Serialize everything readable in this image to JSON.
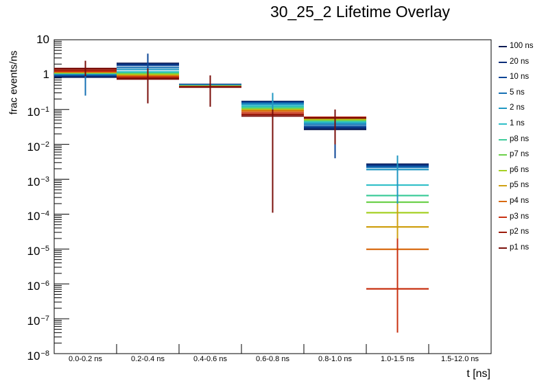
{
  "chart_data": {
    "type": "bar-errorbar",
    "title": "30_25_2 Lifetime Overlay",
    "xlabel": "t [ns]",
    "ylabel": "frac events/ns",
    "yscale": "log",
    "ylim": [
      1e-08,
      10
    ],
    "ytick_labels": [
      {
        "base": "10",
        "exp": ""
      },
      {
        "base": "1",
        "exp": ""
      },
      {
        "base": "10",
        "exp": "−1"
      },
      {
        "base": "10",
        "exp": "−2"
      },
      {
        "base": "10",
        "exp": "−3"
      },
      {
        "base": "10",
        "exp": "−4"
      },
      {
        "base": "10",
        "exp": "−5"
      },
      {
        "base": "10",
        "exp": "−6"
      },
      {
        "base": "10",
        "exp": "−7"
      },
      {
        "base": "10",
        "exp": "−8"
      }
    ],
    "categories": [
      "0.0-0.2 ns",
      "0.2-0.4 ns",
      "0.4-0.6 ns",
      "0.6-0.8 ns",
      "0.8-1.0 ns",
      "1.0-1.5 ns",
      "1.5-12.0 ns"
    ],
    "legend_position": "right",
    "series": [
      {
        "name": "100 ns",
        "color": "#0d1b52",
        "values": [
          0.85,
          2.1,
          0.52,
          0.17,
          0.027,
          0.0027,
          null
        ]
      },
      {
        "name": "20 ns",
        "color": "#0a2c78",
        "values": [
          0.9,
          2.0,
          0.52,
          0.165,
          0.029,
          0.0026,
          null
        ]
      },
      {
        "name": "10 ns",
        "color": "#0b4596",
        "values": [
          0.95,
          1.85,
          0.51,
          0.16,
          0.032,
          0.0024,
          null
        ]
      },
      {
        "name": "5 ns",
        "color": "#1570b4",
        "values": [
          1.0,
          1.6,
          0.5,
          0.15,
          0.036,
          0.0022,
          null
        ]
      },
      {
        "name": "2 ns",
        "color": "#1f97c2",
        "values": [
          1.05,
          1.4,
          0.49,
          0.14,
          0.04,
          0.0019,
          null
        ]
      },
      {
        "name": "1 ns",
        "color": "#2ebfc8",
        "values": [
          1.1,
          1.2,
          0.48,
          0.125,
          0.044,
          0.00068,
          null
        ]
      },
      {
        "name": "p8 ns",
        "color": "#3ecc9a",
        "values": [
          1.1,
          1.1,
          0.48,
          0.115,
          0.047,
          0.00034,
          null
        ]
      },
      {
        "name": "p7 ns",
        "color": "#6cd04a",
        "values": [
          1.12,
          1.05,
          0.47,
          0.105,
          0.05,
          0.00022,
          null
        ]
      },
      {
        "name": "p6 ns",
        "color": "#a6d023",
        "values": [
          1.15,
          1.0,
          0.46,
          0.1,
          0.052,
          0.00011,
          null
        ]
      },
      {
        "name": "p5 ns",
        "color": "#cfa012",
        "values": [
          1.18,
          0.95,
          0.455,
          0.095,
          0.055,
          4.3e-05,
          null
        ]
      },
      {
        "name": "p4 ns",
        "color": "#d86a10",
        "values": [
          1.2,
          0.9,
          0.45,
          0.09,
          0.058,
          9.8e-06,
          null
        ]
      },
      {
        "name": "p3 ns",
        "color": "#c83010",
        "values": [
          1.25,
          0.85,
          0.45,
          0.08,
          0.06,
          7.2e-07,
          null
        ]
      },
      {
        "name": "p2 ns",
        "color": "#9c1a0a",
        "values": [
          1.35,
          0.8,
          0.44,
          0.072,
          0.058,
          null,
          null
        ]
      },
      {
        "name": "p1 ns",
        "color": "#7a0e0a",
        "values": [
          1.5,
          0.75,
          0.44,
          0.065,
          0.057,
          null,
          null
        ]
      }
    ]
  }
}
